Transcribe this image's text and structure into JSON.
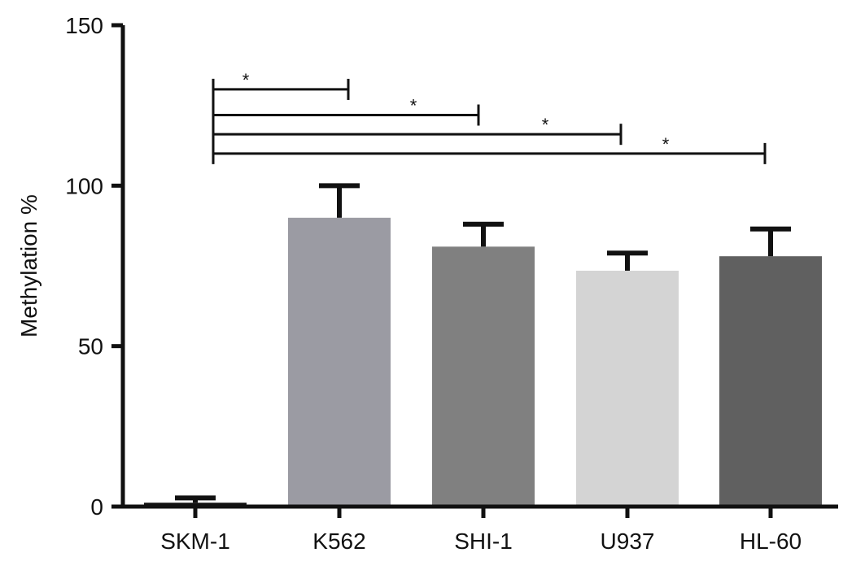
{
  "chart_data": {
    "type": "bar",
    "title": "",
    "xlabel": "",
    "ylabel": "Methylation %",
    "ylim": [
      0,
      150
    ],
    "yticks": [
      0,
      50,
      100,
      150
    ],
    "categories": [
      "SKM-1",
      "K562",
      "SHI-1",
      "U937",
      "HL-60"
    ],
    "values": [
      1.2,
      90,
      81,
      73.5,
      78
    ],
    "errors": [
      1.5,
      10,
      7,
      5.5,
      8.5
    ],
    "colors": [
      "#111111",
      "#9b9ba3",
      "#808080",
      "#d4d4d4",
      "#606060"
    ],
    "grid": false,
    "significance": [
      {
        "from": "SKM-1",
        "to": "K562",
        "y": 130,
        "label": "*"
      },
      {
        "from": "SKM-1",
        "to": "SHI-1",
        "y": 122,
        "label": "*"
      },
      {
        "from": "SKM-1",
        "to": "U937",
        "y": 116,
        "label": "*"
      },
      {
        "from": "SKM-1",
        "to": "HL-60",
        "y": 110,
        "label": "*"
      }
    ]
  }
}
